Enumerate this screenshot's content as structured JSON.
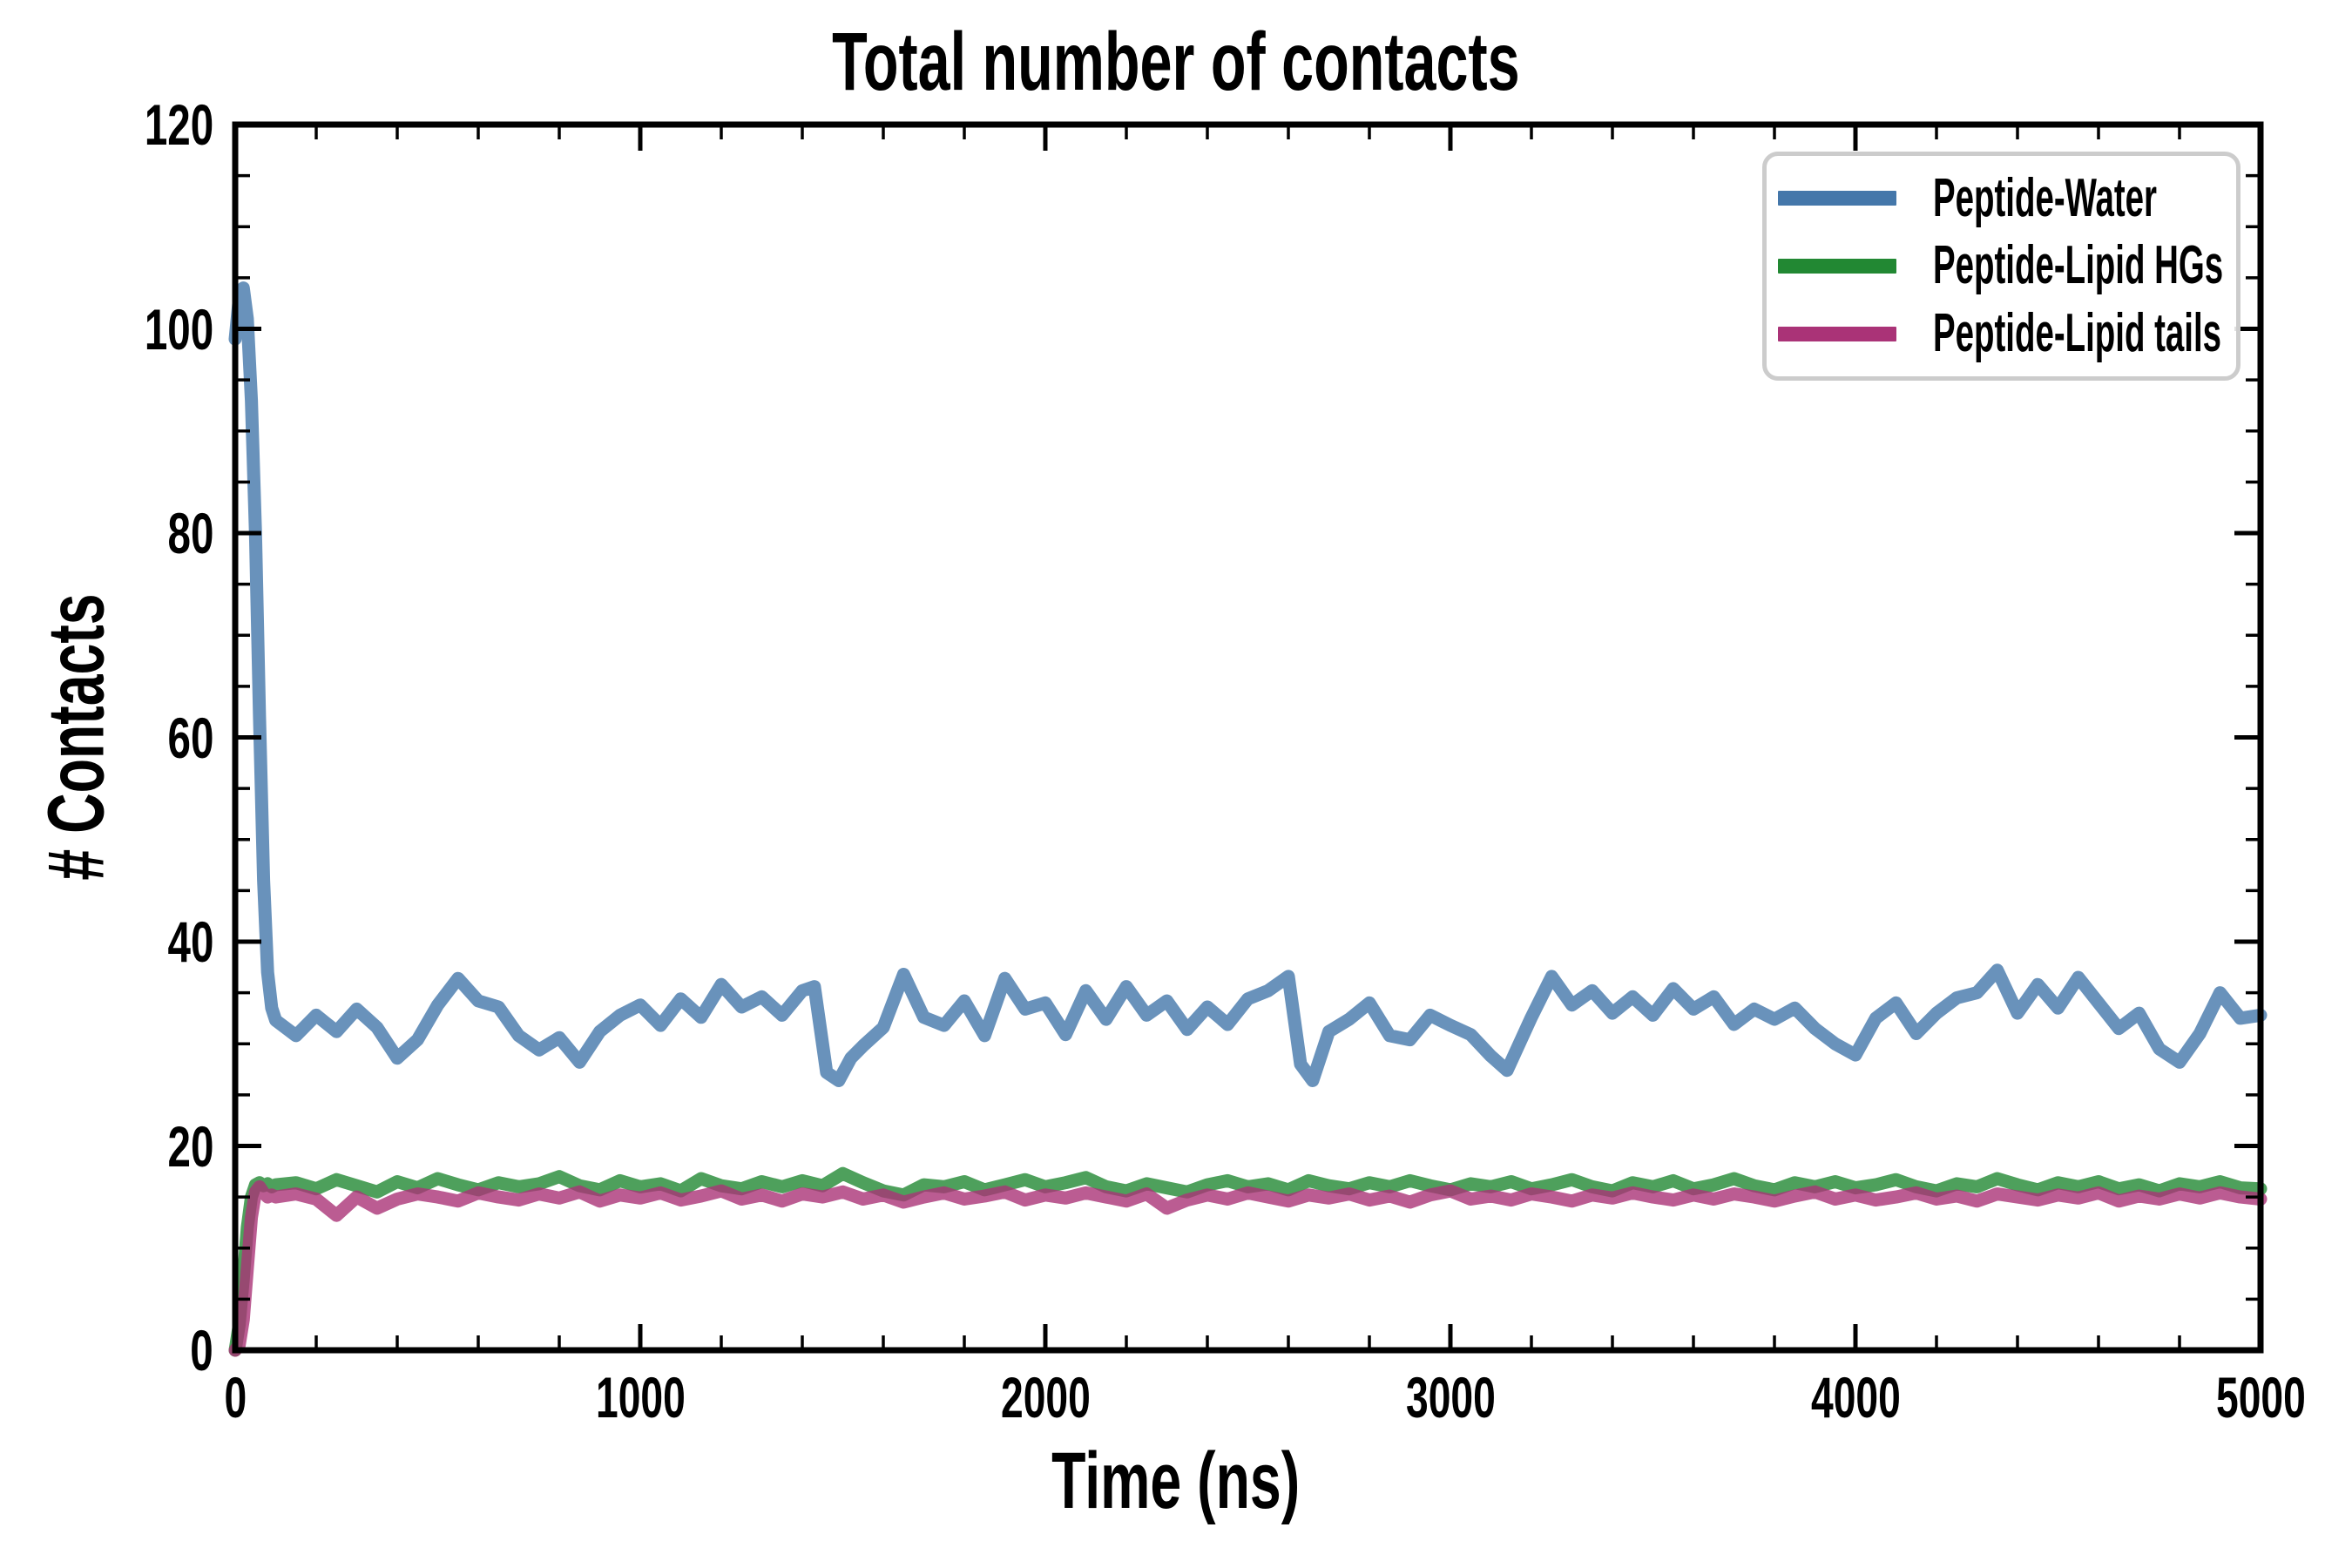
{
  "chart_data": {
    "type": "line",
    "title": "Total number of contacts",
    "xlabel": "Time (ns)",
    "ylabel": "# Contacts",
    "xlim": [
      0,
      5000
    ],
    "ylim": [
      0,
      120
    ],
    "x_major_ticks": [
      0,
      1000,
      2000,
      3000,
      4000,
      5000
    ],
    "x_minor_step": 200,
    "y_major_ticks": [
      0,
      20,
      40,
      60,
      80,
      100,
      120
    ],
    "y_minor_step": 5,
    "grid": false,
    "legend_position": "upper right",
    "legend_border_color": "#cccccc",
    "axis_color": "#000000",
    "line_width": 15,
    "line_opacity": 0.8,
    "series": [
      {
        "name": "Peptide-Water",
        "color": "#4477AA",
        "x": [
          0,
          10,
          20,
          30,
          40,
          50,
          60,
          70,
          80,
          90,
          100,
          150,
          200,
          250,
          300,
          350,
          400,
          450,
          500,
          550,
          600,
          650,
          700,
          750,
          800,
          850,
          900,
          950,
          1000,
          1050,
          1100,
          1150,
          1200,
          1250,
          1300,
          1350,
          1400,
          1430,
          1460,
          1490,
          1520,
          1550,
          1600,
          1650,
          1700,
          1750,
          1800,
          1850,
          1900,
          1950,
          2000,
          2050,
          2100,
          2150,
          2200,
          2250,
          2300,
          2350,
          2400,
          2450,
          2500,
          2550,
          2600,
          2630,
          2660,
          2700,
          2750,
          2800,
          2850,
          2900,
          2950,
          3000,
          3050,
          3100,
          3140,
          3200,
          3250,
          3300,
          3350,
          3400,
          3450,
          3500,
          3550,
          3600,
          3650,
          3700,
          3750,
          3800,
          3850,
          3900,
          3950,
          4000,
          4050,
          4100,
          4150,
          4200,
          4250,
          4300,
          4350,
          4400,
          4450,
          4500,
          4550,
          4600,
          4650,
          4700,
          4750,
          4800,
          4850,
          4900,
          4950,
          5000
        ],
        "y": [
          99,
          103,
          104,
          101,
          93,
          80,
          62,
          46,
          37,
          33.5,
          32.3,
          30.8,
          32.8,
          31.2,
          33.4,
          31.6,
          28.6,
          30.4,
          33.8,
          36.4,
          34.2,
          33.6,
          30.8,
          29.4,
          30.6,
          28.2,
          31.2,
          32.8,
          33.8,
          31.8,
          34.4,
          32.6,
          35.8,
          33.6,
          34.6,
          32.8,
          35.2,
          35.6,
          27.2,
          26.4,
          28.6,
          29.8,
          31.6,
          36.8,
          32.6,
          31.8,
          34.2,
          30.8,
          36.4,
          33.4,
          34.0,
          30.9,
          35.2,
          32.4,
          35.6,
          32.8,
          34.2,
          31.4,
          33.6,
          31.9,
          34.4,
          35.2,
          36.6,
          28.0,
          26.4,
          31.2,
          32.4,
          34.0,
          30.8,
          30.4,
          32.8,
          31.8,
          30.9,
          28.8,
          27.4,
          32.6,
          36.6,
          33.8,
          35.2,
          33.0,
          34.6,
          32.8,
          35.4,
          33.4,
          34.6,
          31.9,
          33.4,
          32.4,
          33.5,
          31.5,
          30.0,
          28.9,
          32.5,
          34.0,
          31.0,
          33.0,
          34.5,
          35.0,
          37.2,
          33.0,
          35.8,
          33.5,
          36.5,
          34.0,
          31.5,
          33.0,
          29.5,
          28.2,
          31.0,
          35.0,
          32.5,
          32.8
        ]
      },
      {
        "name": "Peptide-Lipid HGs",
        "color": "#228833",
        "x": [
          0,
          10,
          20,
          30,
          40,
          50,
          60,
          70,
          80,
          90,
          100,
          150,
          200,
          250,
          300,
          350,
          400,
          450,
          500,
          550,
          600,
          650,
          700,
          750,
          800,
          850,
          900,
          950,
          1000,
          1050,
          1100,
          1150,
          1200,
          1250,
          1300,
          1350,
          1400,
          1450,
          1500,
          1550,
          1600,
          1650,
          1700,
          1750,
          1800,
          1850,
          1900,
          1950,
          2000,
          2050,
          2100,
          2150,
          2200,
          2250,
          2300,
          2350,
          2400,
          2450,
          2500,
          2550,
          2600,
          2650,
          2700,
          2750,
          2800,
          2850,
          2900,
          2950,
          3000,
          3050,
          3100,
          3150,
          3200,
          3250,
          3300,
          3350,
          3400,
          3450,
          3500,
          3550,
          3600,
          3650,
          3700,
          3750,
          3800,
          3850,
          3900,
          3950,
          4000,
          4050,
          4100,
          4150,
          4200,
          4250,
          4300,
          4350,
          4400,
          4450,
          4500,
          4550,
          4600,
          4650,
          4700,
          4750,
          4800,
          4850,
          4900,
          4950,
          5000
        ],
        "y": [
          0,
          2.5,
          7,
          12,
          15,
          16.2,
          16.4,
          16.1,
          16.3,
          16.0,
          16.2,
          16.4,
          15.8,
          16.7,
          16.1,
          15.5,
          16.5,
          15.9,
          16.8,
          16.2,
          15.7,
          16.4,
          16.0,
          16.3,
          17.0,
          16.1,
          15.7,
          16.6,
          16.0,
          16.3,
          15.6,
          16.8,
          16.1,
          15.8,
          16.5,
          16.0,
          16.6,
          16.1,
          17.3,
          16.4,
          15.6,
          15.2,
          16.2,
          16.0,
          16.5,
          15.7,
          16.2,
          16.7,
          16.0,
          16.4,
          16.9,
          16.0,
          15.6,
          16.3,
          15.9,
          15.5,
          16.2,
          16.6,
          16.0,
          16.3,
          15.7,
          16.6,
          16.1,
          15.8,
          16.4,
          16.0,
          16.6,
          16.1,
          15.7,
          16.3,
          16.0,
          16.5,
          15.8,
          16.2,
          16.7,
          16.0,
          15.6,
          16.4,
          16.0,
          16.6,
          15.8,
          16.2,
          16.8,
          16.1,
          15.7,
          16.4,
          16.0,
          16.5,
          15.9,
          16.2,
          16.7,
          16.0,
          15.6,
          16.3,
          16.0,
          16.8,
          16.2,
          15.7,
          16.4,
          16.0,
          16.5,
          15.8,
          16.2,
          15.6,
          16.3,
          16.0,
          16.5,
          15.9,
          15.8
        ]
      },
      {
        "name": "Peptide-Lipid tails",
        "color": "#AA3377",
        "x": [
          0,
          10,
          20,
          30,
          40,
          50,
          60,
          70,
          80,
          90,
          100,
          150,
          200,
          250,
          300,
          350,
          400,
          450,
          500,
          550,
          600,
          650,
          700,
          750,
          800,
          850,
          900,
          950,
          1000,
          1050,
          1100,
          1150,
          1200,
          1250,
          1300,
          1350,
          1400,
          1450,
          1500,
          1550,
          1600,
          1650,
          1700,
          1750,
          1800,
          1850,
          1900,
          1950,
          2000,
          2050,
          2100,
          2150,
          2200,
          2250,
          2300,
          2350,
          2400,
          2450,
          2500,
          2550,
          2600,
          2650,
          2700,
          2750,
          2800,
          2850,
          2900,
          2950,
          3000,
          3050,
          3100,
          3150,
          3200,
          3250,
          3300,
          3350,
          3400,
          3450,
          3500,
          3550,
          3600,
          3650,
          3700,
          3750,
          3800,
          3850,
          3900,
          3950,
          4000,
          4050,
          4100,
          4150,
          4200,
          4250,
          4300,
          4350,
          4400,
          4450,
          4500,
          4550,
          4600,
          4650,
          4700,
          4750,
          4800,
          4850,
          4900,
          4950,
          5000
        ],
        "y": [
          0,
          0.5,
          3,
          8,
          13,
          15.5,
          16.0,
          15.4,
          15.0,
          15.2,
          15.0,
          15.3,
          14.8,
          13.2,
          15.0,
          13.9,
          14.8,
          15.3,
          15.0,
          14.6,
          15.4,
          15.0,
          14.7,
          15.3,
          14.9,
          15.5,
          14.6,
          15.2,
          14.9,
          15.4,
          14.7,
          15.1,
          15.6,
          14.8,
          15.2,
          14.6,
          15.3,
          15.0,
          15.5,
          14.8,
          15.2,
          14.5,
          15.0,
          15.4,
          14.8,
          15.1,
          15.5,
          14.7,
          15.2,
          14.9,
          15.4,
          15.0,
          14.6,
          15.3,
          13.9,
          14.7,
          15.2,
          14.8,
          15.4,
          15.0,
          14.6,
          15.2,
          14.9,
          15.3,
          14.7,
          15.1,
          14.5,
          15.2,
          15.6,
          14.8,
          15.1,
          14.7,
          15.3,
          15.0,
          14.6,
          15.2,
          14.9,
          15.4,
          15.0,
          14.7,
          15.2,
          14.8,
          15.3,
          15.0,
          14.6,
          15.1,
          15.5,
          14.8,
          15.2,
          14.7,
          15.0,
          15.4,
          14.8,
          15.1,
          14.6,
          15.3,
          15.0,
          14.7,
          15.2,
          14.9,
          15.4,
          14.6,
          15.1,
          14.8,
          15.3,
          14.9,
          15.4,
          15.0,
          14.8
        ]
      }
    ]
  }
}
